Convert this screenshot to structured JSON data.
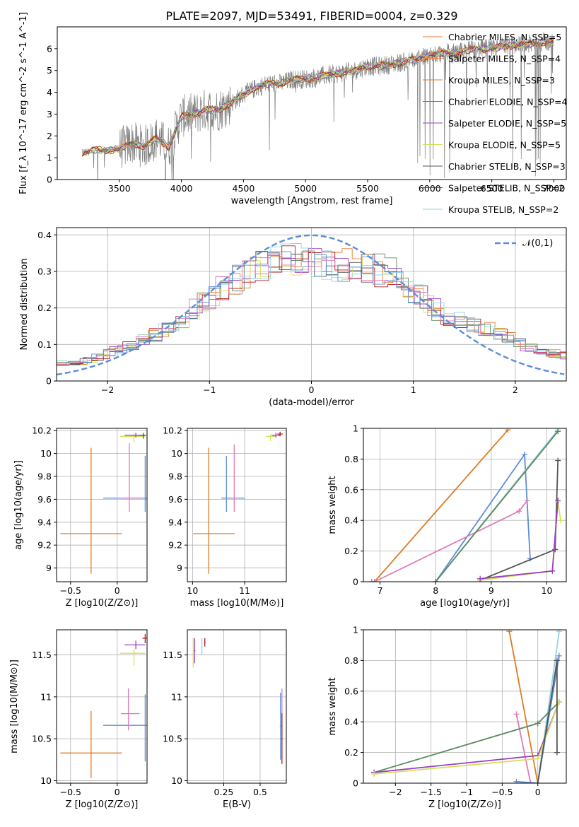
{
  "figure": {
    "title": "PLATE=2097, MJD=53491, FIBERID=0004, z=0.329"
  },
  "colors": {
    "cm": "#e8772d",
    "sm": "#f08e3c",
    "km": "#e07b22",
    "ce": "#5c8a5c",
    "se": "#9a3fc0",
    "ke": "#d4e05a",
    "cs": "#555555",
    "ss": "#b31b1b",
    "ks": "#8fd3e6",
    "blue": "#5b8dd9",
    "pink": "#e07bb8",
    "data": "#808080"
  },
  "chart_data": [
    {
      "id": "spectrum",
      "type": "line",
      "title": "PLATE=2097, MJD=53491, FIBERID=0004, z=0.329",
      "xlabel": "wavelength [Angstrom, rest frame]",
      "ylabel": "Flux [f_λ 10^-17 erg cm^-2 s^-1 A^-1]",
      "xlim": [
        3000,
        7100
      ],
      "ylim": [
        0,
        7
      ],
      "xticks": [
        3500,
        4000,
        4500,
        5000,
        5500,
        6000,
        6500,
        7000
      ],
      "yticks": [
        0,
        1,
        2,
        3,
        4,
        5,
        6
      ],
      "grid": false,
      "legend_position": "top-right",
      "legend": [
        {
          "label": "Chabrier MILES, N_SSP=5",
          "color": "#e8772d"
        },
        {
          "label": "Salpeter MILES, N_SSP=4",
          "color": "#f08e3c"
        },
        {
          "label": "Kroupa MILES, N_SSP=3",
          "color": "#e07b22"
        },
        {
          "label": "Chabrier ELODIE, N_SSP=4",
          "color": "#5c8a5c"
        },
        {
          "label": "Salpeter ELODIE, N_SSP=5",
          "color": "#9a3fc0"
        },
        {
          "label": "Kroupa ELODIE, N_SSP=5",
          "color": "#d4e05a"
        },
        {
          "label": "Chabrier STELIB, N_SSP=3",
          "color": "#555555"
        },
        {
          "label": "Salpeter STELIB, N_SSP=2",
          "color": "#b31b1b"
        },
        {
          "label": "Kroupa STELIB, N_SSP=2",
          "color": "#8fd3e6"
        }
      ],
      "continuum": [
        [
          3200,
          1.2
        ],
        [
          3300,
          1.35
        ],
        [
          3400,
          1.35
        ],
        [
          3500,
          1.4
        ],
        [
          3600,
          1.7
        ],
        [
          3700,
          1.5
        ],
        [
          3800,
          1.9
        ],
        [
          3900,
          1.5
        ],
        [
          4000,
          2.9
        ],
        [
          4100,
          3.0
        ],
        [
          4200,
          3.2
        ],
        [
          4300,
          3.2
        ],
        [
          4400,
          3.5
        ],
        [
          4500,
          3.9
        ],
        [
          4600,
          4.2
        ],
        [
          4700,
          4.4
        ],
        [
          4800,
          4.4
        ],
        [
          4900,
          4.6
        ],
        [
          5000,
          4.6
        ],
        [
          5100,
          4.7
        ],
        [
          5200,
          4.8
        ],
        [
          5300,
          4.9
        ],
        [
          5400,
          5.0
        ],
        [
          5500,
          5.2
        ],
        [
          5600,
          5.2
        ],
        [
          5700,
          5.3
        ],
        [
          5800,
          5.4
        ],
        [
          5900,
          5.5
        ],
        [
          6000,
          5.7
        ],
        [
          6100,
          5.8
        ],
        [
          6200,
          5.8
        ],
        [
          6300,
          5.9
        ],
        [
          6400,
          6.0
        ],
        [
          6500,
          6.0
        ],
        [
          6600,
          6.1
        ],
        [
          6700,
          6.2
        ],
        [
          6800,
          6.2
        ],
        [
          6900,
          6.3
        ],
        [
          7000,
          6.3
        ]
      ]
    },
    {
      "id": "residuals",
      "type": "line",
      "xlabel": "(data-model)/error",
      "ylabel": "Normed distribution",
      "xlim": [
        -2.5,
        2.5
      ],
      "ylim": [
        0,
        0.42
      ],
      "xticks": [
        -2,
        -1,
        0,
        1,
        2
      ],
      "yticks": [
        0.0,
        0.1,
        0.2,
        0.3,
        0.4
      ],
      "grid": true,
      "legend_position": "top-right",
      "legend": [
        {
          "label": "𝒩(0,1)",
          "color": "#5b8dd9",
          "style": "dashed"
        }
      ],
      "gaussian": {
        "mean": 0,
        "sigma": 1
      },
      "histogram_envelope": [
        [
          -2.5,
          0.05
        ],
        [
          -2.25,
          0.05
        ],
        [
          -2.0,
          0.075
        ],
        [
          -1.75,
          0.1
        ],
        [
          -1.5,
          0.13
        ],
        [
          -1.25,
          0.17
        ],
        [
          -1.0,
          0.23
        ],
        [
          -0.75,
          0.27
        ],
        [
          -0.5,
          0.32
        ],
        [
          -0.25,
          0.33
        ],
        [
          0.0,
          0.33
        ],
        [
          0.25,
          0.32
        ],
        [
          0.5,
          0.31
        ],
        [
          0.75,
          0.3
        ],
        [
          1.0,
          0.25
        ],
        [
          1.25,
          0.19
        ],
        [
          1.5,
          0.16
        ],
        [
          1.75,
          0.14
        ],
        [
          2.0,
          0.11
        ],
        [
          2.25,
          0.08
        ],
        [
          2.5,
          0.07
        ]
      ]
    },
    {
      "id": "age-vs-Z",
      "type": "scatter",
      "xlabel": "Z [log10(Z/Z⊙)]",
      "ylabel": "age [log10(age/yr)]",
      "xlim": [
        -0.65,
        0.32
      ],
      "ylim": [
        8.88,
        10.22
      ],
      "xticks": [
        -0.5,
        0.0
      ],
      "yticks": [
        9.0,
        9.2,
        9.4,
        9.6,
        9.8,
        10.0,
        10.2
      ],
      "grid": true,
      "points": [
        {
          "x": -0.28,
          "y": 9.3,
          "xerr": [
            0.33,
            0.33
          ],
          "yerr": [
            0.35,
            0.75
          ],
          "color": "#e07b22"
        },
        {
          "x": 0.3,
          "y": 9.61,
          "xerr": [
            0.45,
            0.02
          ],
          "yerr": [
            0.12,
            0.37
          ],
          "color": "#5b8dd9"
        },
        {
          "x": 0.13,
          "y": 9.61,
          "xerr": [
            0.08,
            0.12
          ],
          "yerr": [
            0.12,
            0.48
          ],
          "color": "#e07bb8"
        },
        {
          "x": 0.18,
          "y": 10.15,
          "xerr": [
            0.15,
            0.12
          ],
          "yerr": [
            0.05,
            0.02
          ],
          "color": "#d4e05a"
        },
        {
          "x": 0.2,
          "y": 10.16,
          "xerr": [
            0.12,
            0.1
          ],
          "yerr": [
            0.02,
            0.02
          ],
          "color": "#9a3fc0"
        },
        {
          "x": 0.28,
          "y": 10.16,
          "xerr": [
            0.05,
            0.03
          ],
          "yerr": [
            0.03,
            0.02
          ],
          "color": "#555555"
        }
      ]
    },
    {
      "id": "age-vs-mass",
      "type": "scatter",
      "xlabel": "mass [log10(M/M⊙)]",
      "ylabel": "",
      "xlim": [
        9.9,
        11.8
      ],
      "ylim": [
        8.88,
        10.22
      ],
      "xticks": [
        10,
        11
      ],
      "yticks": [
        9.0,
        9.2,
        9.4,
        9.6,
        9.8,
        10.0,
        10.2
      ],
      "grid": true,
      "points": [
        {
          "x": 10.31,
          "y": 9.3,
          "xerr": [
            0.3,
            0.5
          ],
          "yerr": [
            0.35,
            0.75
          ],
          "color": "#e07b22"
        },
        {
          "x": 10.65,
          "y": 9.61,
          "xerr": [
            0.1,
            0.35
          ],
          "yerr": [
            0.12,
            0.37
          ],
          "color": "#5b8dd9"
        },
        {
          "x": 10.8,
          "y": 9.61,
          "xerr": [
            0.05,
            0.08
          ],
          "yerr": [
            0.12,
            0.47
          ],
          "color": "#e07bb8"
        },
        {
          "x": 11.5,
          "y": 10.15,
          "xerr": [
            0.1,
            0.1
          ],
          "yerr": [
            0.04,
            0.02
          ],
          "color": "#d4e05a"
        },
        {
          "x": 11.6,
          "y": 10.16,
          "xerr": [
            0.08,
            0.08
          ],
          "yerr": [
            0.02,
            0.02
          ],
          "color": "#9a3fc0"
        },
        {
          "x": 11.68,
          "y": 10.17,
          "xerr": [
            0.05,
            0.05
          ],
          "yerr": [
            0.02,
            0.02
          ],
          "color": "#b31b1b"
        }
      ]
    },
    {
      "id": "massweight-vs-age",
      "type": "line",
      "xlabel": "age [log10(age/yr)]",
      "ylabel": "mass weight",
      "xlim": [
        6.7,
        10.35
      ],
      "ylim": [
        0,
        1
      ],
      "xticks": [
        7,
        8,
        9,
        10
      ],
      "yticks": [
        0.0,
        0.2,
        0.4,
        0.6,
        0.8,
        1.0
      ],
      "grid": true,
      "series": [
        {
          "color": "#e07b22",
          "x": [
            6.85,
            6.9,
            9.3
          ],
          "y": [
            0.0,
            0.0,
            0.99
          ]
        },
        {
          "color": "#5b8dd9",
          "x": [
            8.0,
            9.6,
            9.7
          ],
          "y": [
            0.0,
            0.83,
            0.15
          ]
        },
        {
          "color": "#e07bb8",
          "x": [
            6.9,
            9.5,
            9.65
          ],
          "y": [
            0.0,
            0.46,
            0.53
          ]
        },
        {
          "color": "#8fd3e6",
          "x": [
            8.0,
            10.2
          ],
          "y": [
            0.0,
            0.99
          ]
        },
        {
          "color": "#5c8a5c",
          "x": [
            8.0,
            10.2
          ],
          "y": [
            0.0,
            0.98
          ]
        },
        {
          "color": "#555555",
          "x": [
            8.8,
            10.15,
            10.2
          ],
          "y": [
            0.01,
            0.21,
            0.79
          ]
        },
        {
          "color": "#d4e05a",
          "x": [
            8.8,
            10.1,
            10.2,
            10.25
          ],
          "y": [
            0.01,
            0.07,
            0.52,
            0.4
          ]
        },
        {
          "color": "#9a3fc0",
          "x": [
            8.8,
            10.1,
            10.2
          ],
          "y": [
            0.02,
            0.07,
            0.53
          ]
        }
      ]
    },
    {
      "id": "mass-vs-Z",
      "type": "scatter",
      "xlabel": "Z [log10(Z/Z⊙)]",
      "ylabel": "mass [log10(M/M⊙)]",
      "xlim": [
        -0.65,
        0.32
      ],
      "ylim": [
        9.97,
        11.8
      ],
      "xticks": [
        -0.5,
        0.0
      ],
      "yticks": [
        10.0,
        10.5,
        11.0,
        11.5
      ],
      "grid": true,
      "points": [
        {
          "x": -0.28,
          "y": 10.33,
          "xerr": [
            0.33,
            0.33
          ],
          "yerr": [
            0.3,
            0.5
          ],
          "color": "#e07b22"
        },
        {
          "x": 0.3,
          "y": 10.66,
          "xerr": [
            0.45,
            0.02
          ],
          "yerr": [
            0.43,
            0.37
          ],
          "color": "#5b8dd9"
        },
        {
          "x": 0.12,
          "y": 10.8,
          "xerr": [
            0.08,
            0.12
          ],
          "yerr": [
            0.2,
            0.3
          ],
          "color": "#e07bb8"
        },
        {
          "x": 0.18,
          "y": 11.52,
          "xerr": [
            0.15,
            0.12
          ],
          "yerr": [
            0.15,
            0.05
          ],
          "color": "#d4e05a"
        },
        {
          "x": 0.2,
          "y": 11.62,
          "xerr": [
            0.12,
            0.1
          ],
          "yerr": [
            0.05,
            0.05
          ],
          "color": "#9a3fc0"
        },
        {
          "x": 0.3,
          "y": 11.7,
          "xerr": [
            0.03,
            0.02
          ],
          "yerr": [
            0.06,
            0.05
          ],
          "color": "#b31b1b"
        }
      ]
    },
    {
      "id": "mass-vs-EBV",
      "type": "scatter",
      "xlabel": "E(B-V)",
      "ylabel": "",
      "xlim": [
        0.0,
        0.68
      ],
      "ylim": [
        9.97,
        11.8
      ],
      "xticks": [
        0.25,
        0.5
      ],
      "yticks": [
        10.0,
        10.5,
        11.0,
        11.5
      ],
      "grid": true,
      "points": [
        {
          "x": 0.04,
          "y": 11.5,
          "xerr": [
            0.005,
            0.005
          ],
          "yerr": [
            0.15,
            0.2
          ],
          "color": "#d4e05a"
        },
        {
          "x": 0.05,
          "y": 11.55,
          "xerr": [
            0.005,
            0.005
          ],
          "yerr": [
            0.15,
            0.15
          ],
          "color": "#9a3fc0"
        },
        {
          "x": 0.1,
          "y": 11.6,
          "xerr": [
            0.005,
            0.005
          ],
          "yerr": [
            0.1,
            0.1
          ],
          "color": "#8fd3e6"
        },
        {
          "x": 0.12,
          "y": 11.65,
          "xerr": [
            0.005,
            0.005
          ],
          "yerr": [
            0.05,
            0.05
          ],
          "color": "#b31b1b"
        },
        {
          "x": 0.64,
          "y": 10.65,
          "xerr": [
            0.005,
            0.005
          ],
          "yerr": [
            0.4,
            0.4
          ],
          "color": "#5b8dd9"
        },
        {
          "x": 0.65,
          "y": 10.8,
          "xerr": [
            0.005,
            0.005
          ],
          "yerr": [
            0.25,
            0.3
          ],
          "color": "#e07bb8"
        },
        {
          "x": 0.65,
          "y": 10.5,
          "xerr": [
            0.005,
            0.005
          ],
          "yerr": [
            0.3,
            0.3
          ],
          "color": "#b31b1b"
        }
      ]
    },
    {
      "id": "massweight-vs-Z",
      "type": "line",
      "xlabel": "Z [log10(Z/Z⊙)]",
      "ylabel": "mass weight",
      "xlim": [
        -2.45,
        0.4
      ],
      "ylim": [
        0,
        1
      ],
      "xticks": [
        -2.0,
        -1.5,
        -1.0,
        -0.5,
        0.0
      ],
      "yticks": [
        0.0,
        0.2,
        0.4,
        0.6,
        0.8,
        1.0
      ],
      "grid": true,
      "series": [
        {
          "color": "#e07b22",
          "x": [
            -0.4,
            0.0
          ],
          "y": [
            0.99,
            0.0
          ]
        },
        {
          "color": "#e07bb8",
          "x": [
            -0.3,
            -0.1
          ],
          "y": [
            0.45,
            0.0
          ]
        },
        {
          "color": "#5b8dd9",
          "x": [
            -0.3,
            0.0,
            0.3
          ],
          "y": [
            0.01,
            0.0,
            0.83
          ]
        },
        {
          "color": "#8fd3e6",
          "x": [
            0.0,
            0.3
          ],
          "y": [
            0.0,
            0.99
          ]
        },
        {
          "color": "#5c8a5c",
          "x": [
            -2.3,
            0.0,
            0.3
          ],
          "y": [
            0.07,
            0.39,
            0.53
          ]
        },
        {
          "color": "#9a3fc0",
          "x": [
            -2.3,
            0.0,
            0.3
          ],
          "y": [
            0.07,
            0.18,
            0.53
          ]
        },
        {
          "color": "#d4e05a",
          "x": [
            -2.3,
            0.0,
            0.3
          ],
          "y": [
            0.06,
            0.16,
            0.53
          ]
        },
        {
          "color": "#555555",
          "x": [
            0.0,
            0.27,
            0.27
          ],
          "y": [
            0.0,
            0.8,
            0.2
          ]
        }
      ]
    }
  ]
}
